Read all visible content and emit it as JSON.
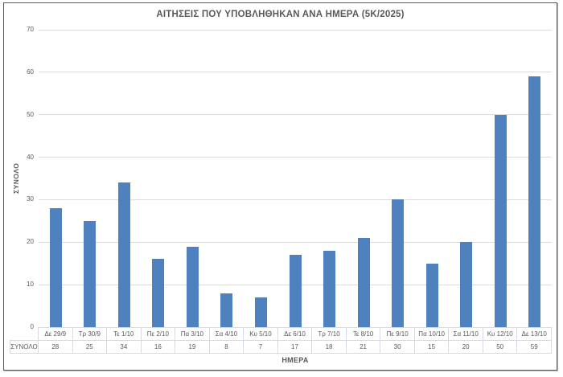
{
  "chart_data": {
    "type": "bar",
    "title": "ΑΙΤΗΣΕΙΣ ΠΟΥ ΥΠΟΒΛΗΘΗΚΑΝ ΑΝΑ ΗΜΕΡΑ (5Κ/2025)",
    "xlabel": "ΗΜΕΡΑ",
    "ylabel": "ΣΥΝΟΛΟ",
    "categories": [
      "Δε 29/9",
      "Τρ 30/9",
      "Τε 1/10",
      "Πε 2/10",
      "Πα 3/10",
      "Σα 4/10",
      "Κυ 5/10",
      "Δε 6/10",
      "Τρ 7/10",
      "Τε 8/10",
      "Πε 9/10",
      "Πα 10/10",
      "Σα 11/10",
      "Κυ 12/10",
      "Δε 13/10"
    ],
    "series": [
      {
        "name": "ΣΥΝΟΛΟ",
        "values": [
          28,
          25,
          34,
          16,
          19,
          8,
          7,
          17,
          18,
          21,
          30,
          15,
          20,
          50,
          59
        ]
      }
    ],
    "ylim": [
      0,
      70
    ],
    "ytick_interval": 10,
    "yticks": [
      0,
      10,
      20,
      30,
      40,
      50,
      60,
      70
    ],
    "grid": true,
    "legend_position": "none",
    "data_table": {
      "shown": true,
      "row_header": "ΣΥΝΟΛΟ"
    },
    "colors": {
      "bar": "#4e81bd",
      "gridline": "#dcdcdc",
      "text": "#595959",
      "table_border": "#d4dbe4",
      "frame_border": "#595959"
    }
  }
}
